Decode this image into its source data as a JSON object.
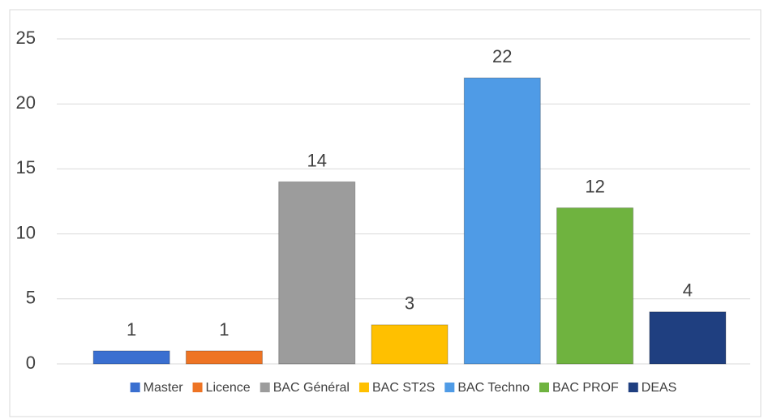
{
  "chart_data": {
    "type": "bar",
    "series": [
      {
        "name": "Master",
        "color": "#3a6fd0",
        "values": [
          1
        ]
      },
      {
        "name": "Licence",
        "color": "#ee7424",
        "values": [
          1
        ]
      },
      {
        "name": "BAC Général",
        "color": "#9c9c9c",
        "values": [
          14
        ]
      },
      {
        "name": "BAC ST2S",
        "color": "#ffc000",
        "values": [
          3
        ]
      },
      {
        "name": "BAC Techno",
        "color": "#4f9be6",
        "values": [
          22
        ]
      },
      {
        "name": "BAC PROF",
        "color": "#6fb33f",
        "values": [
          12
        ]
      },
      {
        "name": "DEAS",
        "color": "#1f3f80",
        "values": [
          4
        ]
      }
    ],
    "ylim": [
      0,
      25
    ],
    "yticks": [
      0,
      5,
      10,
      15,
      20,
      25
    ],
    "grid": true,
    "legend": "bottom"
  }
}
